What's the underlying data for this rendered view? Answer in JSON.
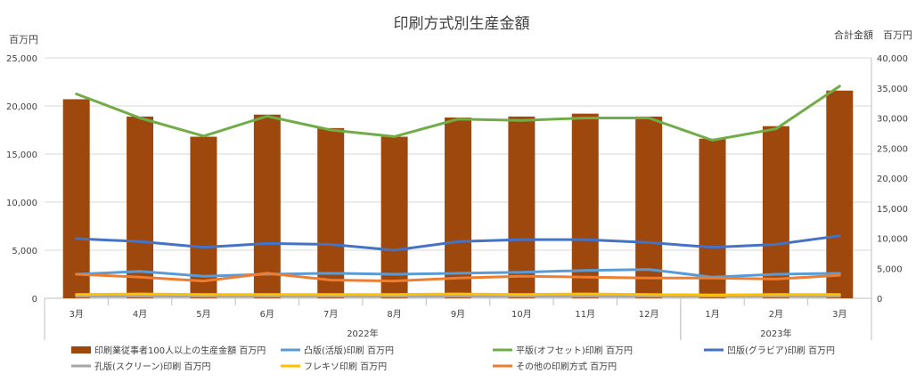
{
  "chart_data": {
    "type": "bar",
    "title": "印刷方式別生産金額",
    "ylabel": "百万円",
    "y2label": "合計金額　百万円",
    "ylim": [
      0,
      25000
    ],
    "y2lim": [
      0,
      40000
    ],
    "yticks": [
      "0",
      "5,000",
      "10,000",
      "15,000",
      "20,000",
      "25,000"
    ],
    "y2ticks": [
      "0",
      "5,000",
      "10,000",
      "15,000",
      "20,000",
      "25,000",
      "30,000",
      "35,000",
      "40,000"
    ],
    "categories": [
      "3月",
      "4月",
      "5月",
      "6月",
      "7月",
      "8月",
      "9月",
      "10月",
      "11月",
      "12月",
      "1月",
      "2月",
      "3月"
    ],
    "year_groups": [
      {
        "label": "2022年",
        "start": 0,
        "end": 9
      },
      {
        "label": "2023年",
        "start": 10,
        "end": 12
      }
    ],
    "grid": true,
    "legend_position": "bottom",
    "series": [
      {
        "name": "印刷業従事者100人以上の生産金額 百万円",
        "type": "bar",
        "axis": "left",
        "color": "#9E480E",
        "values": [
          20700,
          18900,
          16800,
          19100,
          17700,
          16800,
          18800,
          18900,
          19200,
          18900,
          16600,
          17900,
          21600
        ]
      },
      {
        "name": "凸版(活版)印刷 百万円",
        "type": "line",
        "axis": "left",
        "color": "#5B9BD5",
        "values": [
          2500,
          2800,
          2300,
          2500,
          2600,
          2500,
          2600,
          2700,
          2900,
          3000,
          2200,
          2500,
          2600
        ]
      },
      {
        "name": "平版(オフセット)印刷 百万円",
        "type": "line",
        "axis": "right",
        "color": "#70AD47",
        "values": [
          34000,
          30000,
          27000,
          30300,
          28000,
          26900,
          29800,
          29600,
          30000,
          30000,
          26300,
          28200,
          35300
        ]
      },
      {
        "name": "凹版(グラビア)印刷 百万円",
        "type": "line",
        "axis": "left",
        "color": "#4472C4",
        "values": [
          6200,
          5900,
          5300,
          5700,
          5600,
          5000,
          5900,
          6100,
          6100,
          5800,
          5300,
          5600,
          6500
        ]
      },
      {
        "name": "孔版(スクリーン)印刷 百万円",
        "type": "line",
        "axis": "left",
        "color": "#A5A5A5",
        "values": [
          200,
          200,
          200,
          200,
          200,
          200,
          200,
          200,
          200,
          200,
          200,
          200,
          200
        ]
      },
      {
        "name": "フレキソ印刷 百万円",
        "type": "line",
        "axis": "left",
        "color": "#FFC000",
        "values": [
          400,
          450,
          400,
          400,
          400,
          400,
          450,
          400,
          450,
          400,
          350,
          400,
          400
        ]
      },
      {
        "name": "その他の印刷方式 百万円",
        "type": "line",
        "axis": "left",
        "color": "#ED7D31",
        "values": [
          2500,
          2200,
          1800,
          2600,
          1900,
          1800,
          2100,
          2300,
          2200,
          2100,
          2100,
          2000,
          2400
        ]
      }
    ]
  }
}
